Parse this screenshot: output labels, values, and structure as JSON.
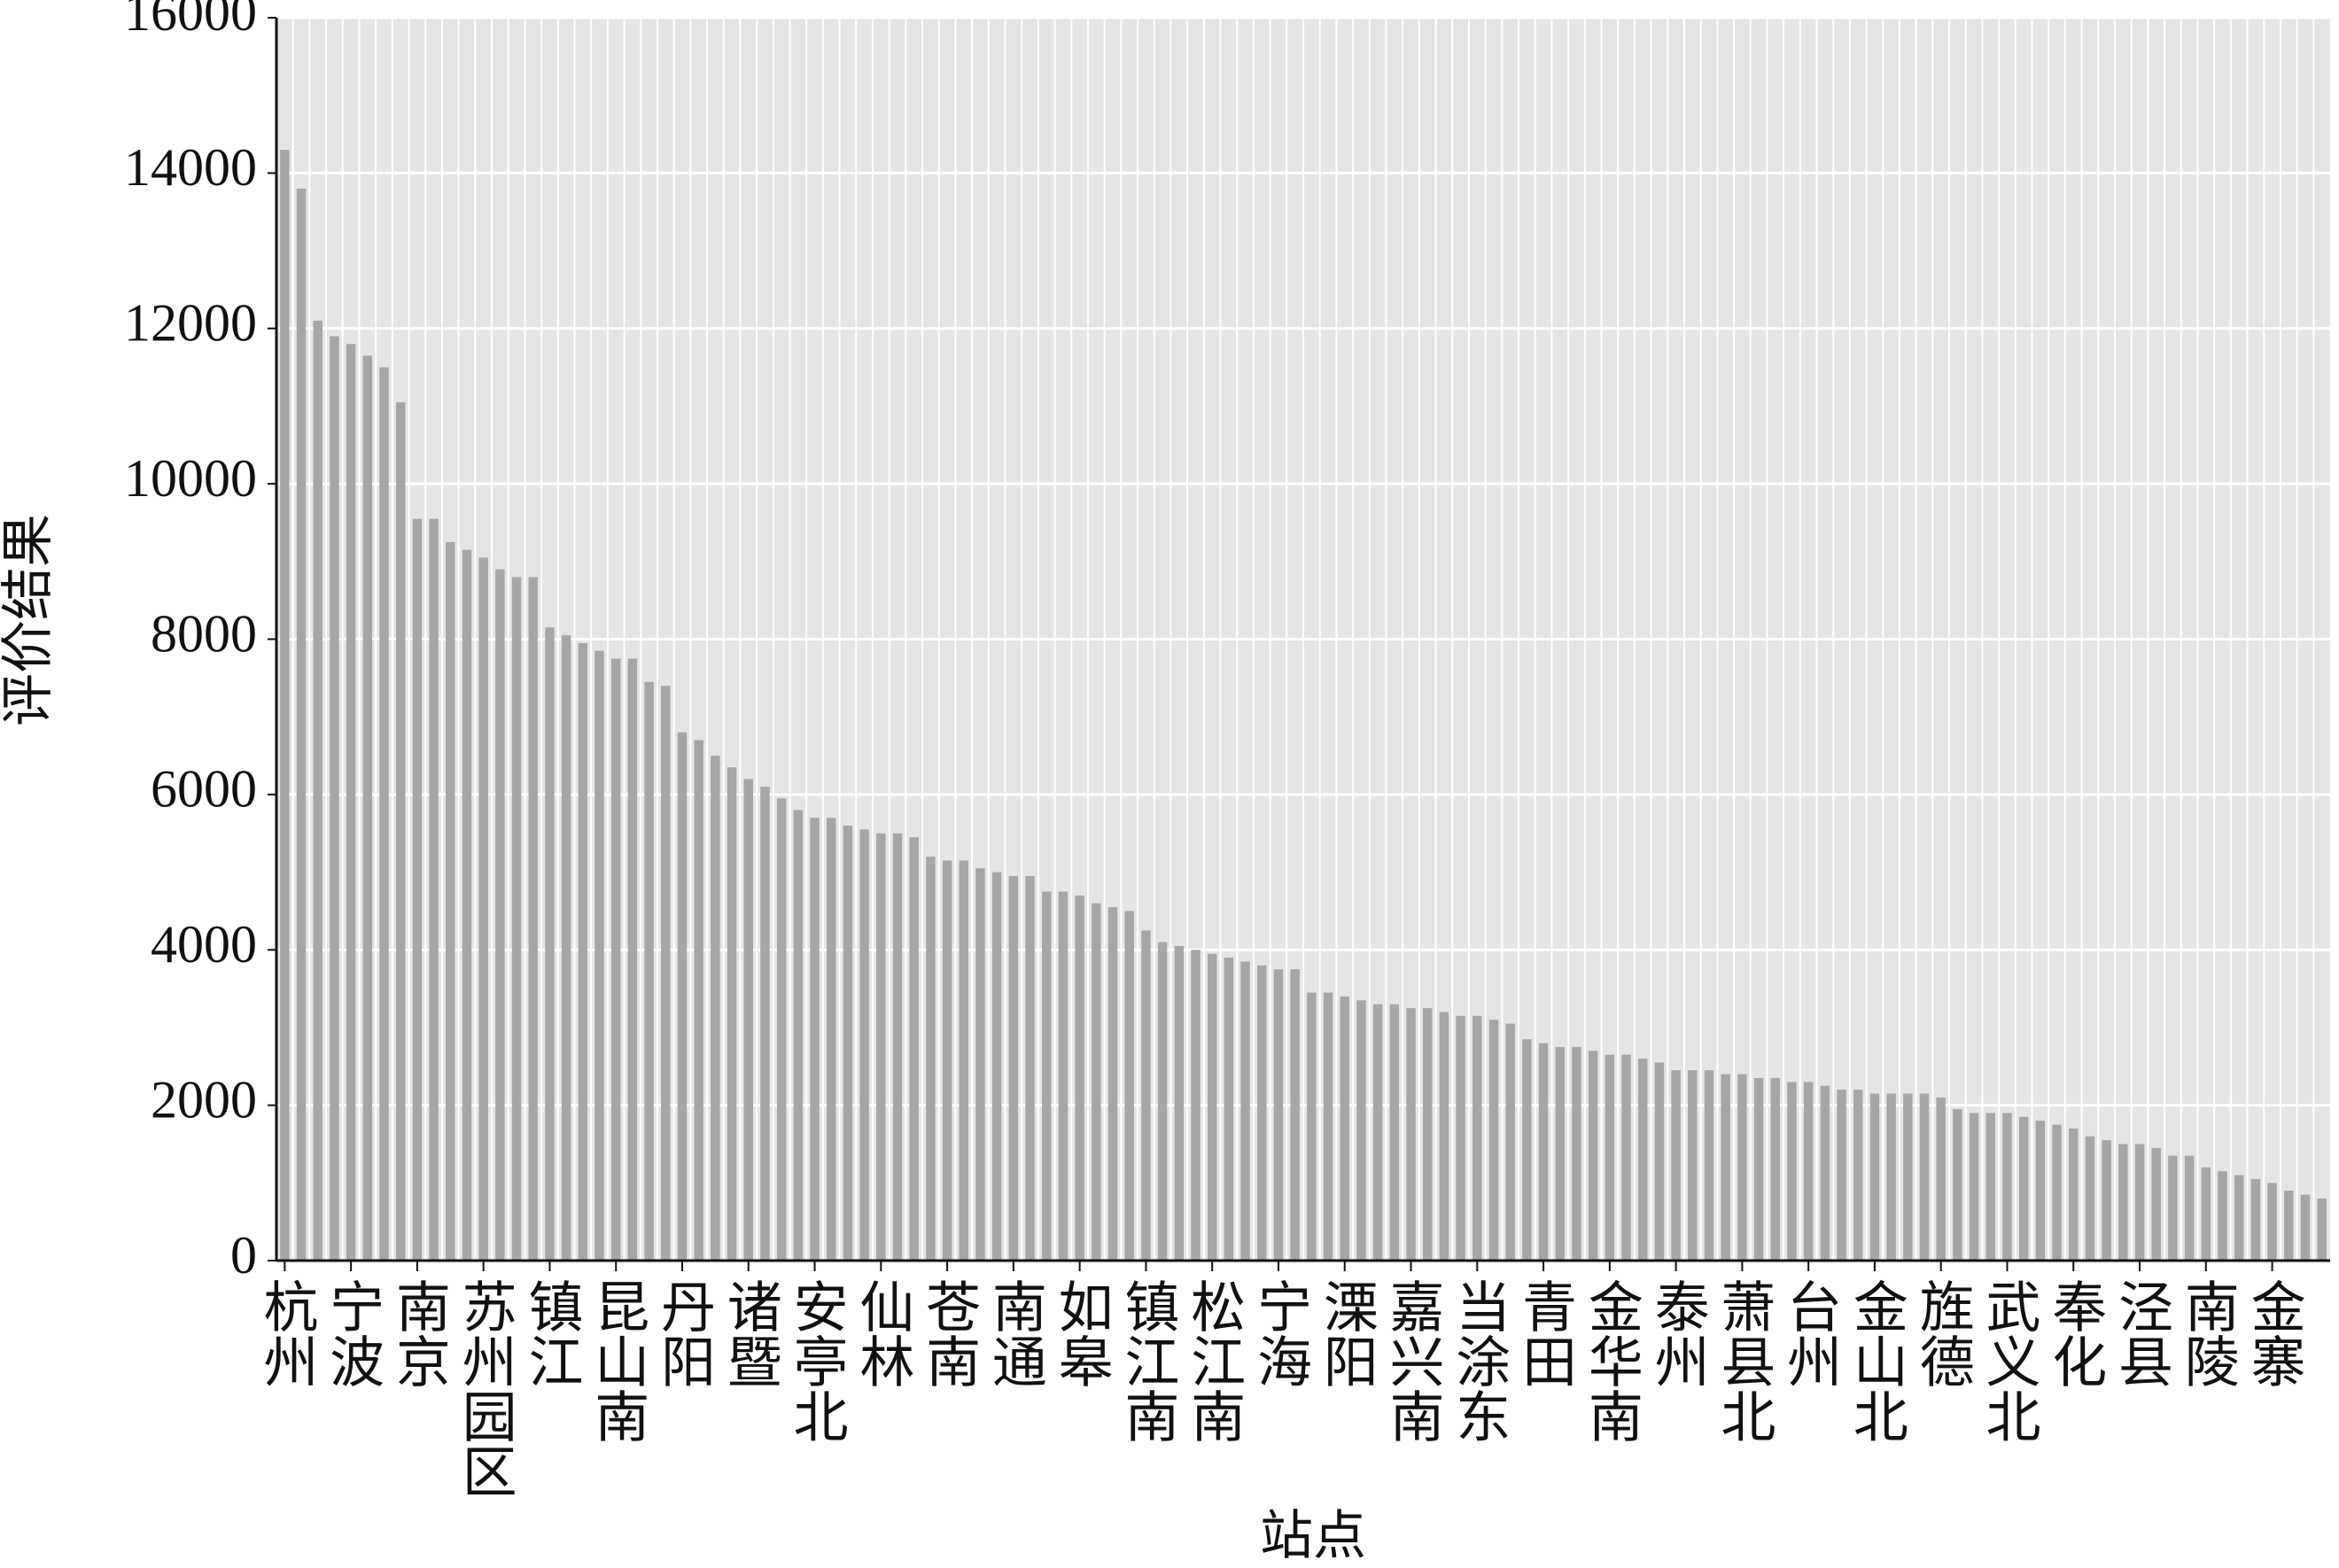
{
  "chart_data": {
    "type": "bar",
    "x_label": "站点",
    "y_label": "评价结果",
    "categories": [
      "杭州",
      null,
      null,
      null,
      "宁波",
      null,
      null,
      null,
      "南京",
      null,
      null,
      null,
      "苏州园区",
      null,
      null,
      null,
      "镇江",
      null,
      null,
      null,
      "昆山南",
      null,
      null,
      null,
      "丹阳",
      null,
      null,
      null,
      "诸暨",
      null,
      null,
      null,
      "安亭北",
      null,
      null,
      null,
      "仙林",
      null,
      null,
      null,
      "苍南",
      null,
      null,
      null,
      "南通",
      null,
      null,
      null,
      "如皋",
      null,
      null,
      null,
      "镇江南",
      null,
      null,
      null,
      "松江南",
      null,
      null,
      null,
      "宁海",
      null,
      null,
      null,
      "溧阳",
      null,
      null,
      null,
      "嘉兴南",
      null,
      null,
      null,
      "当涂东",
      null,
      null,
      null,
      "青田",
      null,
      null,
      null,
      "金华南",
      null,
      null,
      null,
      "泰州",
      null,
      null,
      null,
      "萧县北",
      null,
      null,
      null,
      "台州",
      null,
      null,
      null,
      "金山北",
      null,
      null,
      null,
      "旌德",
      null,
      null,
      null,
      "武义北",
      null,
      null,
      null,
      "奉化",
      null,
      null,
      null,
      "泾县",
      null,
      null,
      null,
      "南陵",
      null,
      null,
      null,
      "金寨",
      null,
      null,
      null
    ],
    "values": [
      14300,
      13800,
      12100,
      11900,
      11800,
      11650,
      11500,
      11050,
      9550,
      9550,
      9250,
      9150,
      9050,
      8900,
      8800,
      8800,
      8150,
      8050,
      7950,
      7850,
      7750,
      7750,
      7450,
      7400,
      6800,
      6700,
      6500,
      6350,
      6200,
      6100,
      5950,
      5800,
      5700,
      5700,
      5600,
      5550,
      5500,
      5500,
      5450,
      5200,
      5150,
      5150,
      5050,
      5000,
      4950,
      4950,
      4750,
      4750,
      4700,
      4600,
      4550,
      4500,
      4250,
      4100,
      4050,
      4000,
      3950,
      3900,
      3850,
      3800,
      3750,
      3750,
      3450,
      3450,
      3400,
      3350,
      3300,
      3300,
      3250,
      3250,
      3200,
      3150,
      3150,
      3100,
      3050,
      2850,
      2800,
      2750,
      2750,
      2700,
      2650,
      2650,
      2600,
      2550,
      2450,
      2450,
      2450,
      2400,
      2400,
      2350,
      2350,
      2300,
      2300,
      2250,
      2200,
      2200,
      2150,
      2150,
      2150,
      2150,
      2100,
      1950,
      1900,
      1900,
      1900,
      1850,
      1800,
      1750,
      1700,
      1600,
      1550,
      1500,
      1500,
      1450,
      1350,
      1350,
      1200,
      1150,
      1100,
      1050,
      1000,
      900,
      850,
      800
    ],
    "color": "#a6a6a6",
    "ylim": [
      0,
      16000
    ],
    "yticks": [
      0,
      2000,
      4000,
      6000,
      8000,
      10000,
      12000,
      14000,
      16000
    ],
    "grid": true
  }
}
